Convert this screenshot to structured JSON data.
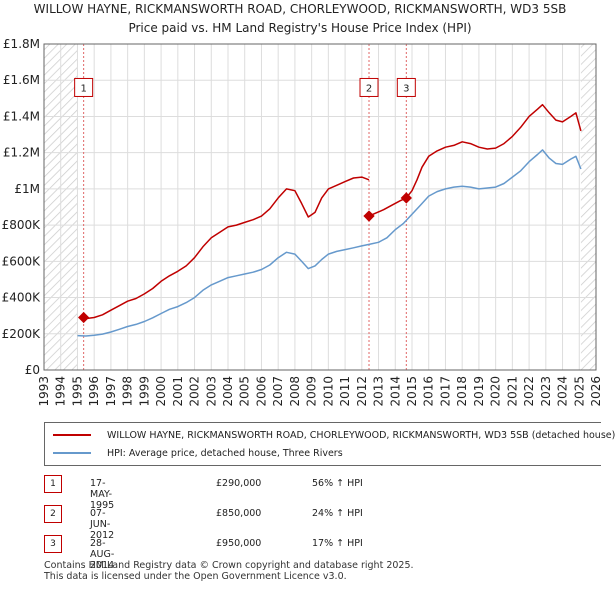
{
  "title_line1": "WILLOW HAYNE, RICKMANSWORTH ROAD, CHORLEYWOOD, RICKMANSWORTH, WD3 5SB",
  "title_line2": "Price paid vs. HM Land Registry's House Price Index (HPI)",
  "colors": {
    "property": "#c00000",
    "hpi": "#6699cc",
    "grid": "#dddddd",
    "hatch": "#cccccc",
    "marker_line": "#e06666"
  },
  "legend": {
    "property_label": "WILLOW HAYNE, RICKMANSWORTH ROAD, CHORLEYWOOD, RICKMANSWORTH, WD3 5SB (detached house)",
    "hpi_label": "HPI: Average price, detached house, Three Rivers"
  },
  "transactions": [
    {
      "num": "1",
      "date": "17-MAY-1995",
      "price": "£290,000",
      "hpi": "56% ↑ HPI"
    },
    {
      "num": "2",
      "date": "07-JUN-2012",
      "price": "£850,000",
      "hpi": "24% ↑ HPI"
    },
    {
      "num": "3",
      "date": "28-AUG-2014",
      "price": "£950,000",
      "hpi": "17% ↑ HPI"
    }
  ],
  "footer_line1": "Contains HM Land Registry data © Crown copyright and database right 2025.",
  "footer_line2": "This data is licensed under the Open Government Licence v3.0.",
  "chart_data": {
    "type": "line",
    "title": "WILLOW HAYNE, RICKMANSWORTH ROAD, CHORLEYWOOD, RICKMANSWORTH, WD3 5SB",
    "subtitle": "Price paid vs. HM Land Registry's House Price Index (HPI)",
    "xlabel": "",
    "ylabel": "",
    "xlim": [
      1993,
      2026
    ],
    "ylim": [
      0,
      1800000
    ],
    "grid": true,
    "x_ticks": [
      "1993",
      "1994",
      "1995",
      "1996",
      "1997",
      "1998",
      "1999",
      "2000",
      "2001",
      "2002",
      "2003",
      "2004",
      "2005",
      "2006",
      "2007",
      "2008",
      "2009",
      "2010",
      "2011",
      "2012",
      "2013",
      "2014",
      "2015",
      "2016",
      "2017",
      "2018",
      "2019",
      "2020",
      "2021",
      "2022",
      "2023",
      "2024",
      "2025",
      "2026"
    ],
    "y_ticks": [
      {
        "value": 0,
        "label": "£0"
      },
      {
        "value": 200000,
        "label": "£200K"
      },
      {
        "value": 400000,
        "label": "£400K"
      },
      {
        "value": 600000,
        "label": "£600K"
      },
      {
        "value": 800000,
        "label": "£800K"
      },
      {
        "value": 1000000,
        "label": "£1M"
      },
      {
        "value": 1200000,
        "label": "£1.2M"
      },
      {
        "value": 1400000,
        "label": "£1.4M"
      },
      {
        "value": 1600000,
        "label": "£1.6M"
      },
      {
        "value": 1800000,
        "label": "£1.8M"
      }
    ],
    "hatched_ranges": [
      [
        1993,
        1995.0
      ],
      [
        2025.1,
        2026
      ]
    ],
    "series": [
      {
        "name": "WILLOW HAYNE, RICKMANSWORTH ROAD, CHORLEYWOOD, RICKMANSWORTH, WD3 5SB (detached house)",
        "segments": [
          [
            [
              1995.37,
              290000
            ],
            [
              1995.6,
              285000
            ],
            [
              1996,
              290000
            ],
            [
              1996.5,
              305000
            ],
            [
              1997,
              330000
            ],
            [
              1997.5,
              355000
            ],
            [
              1998,
              380000
            ],
            [
              1998.5,
              395000
            ],
            [
              1999,
              420000
            ],
            [
              1999.5,
              450000
            ],
            [
              2000,
              490000
            ],
            [
              2000.5,
              520000
            ],
            [
              2001,
              545000
            ],
            [
              2001.5,
              575000
            ],
            [
              2002,
              620000
            ],
            [
              2002.5,
              680000
            ],
            [
              2003,
              730000
            ],
            [
              2003.5,
              760000
            ],
            [
              2004,
              790000
            ],
            [
              2004.5,
              800000
            ],
            [
              2005,
              815000
            ],
            [
              2005.5,
              830000
            ],
            [
              2006,
              850000
            ],
            [
              2006.5,
              890000
            ],
            [
              2007,
              950000
            ],
            [
              2007.5,
              1000000
            ],
            [
              2008,
              990000
            ],
            [
              2008.4,
              920000
            ],
            [
              2008.8,
              845000
            ],
            [
              2009.2,
              870000
            ],
            [
              2009.6,
              950000
            ],
            [
              2010,
              1000000
            ],
            [
              2010.5,
              1020000
            ],
            [
              2011,
              1040000
            ],
            [
              2011.5,
              1060000
            ],
            [
              2012,
              1065000
            ],
            [
              2012.43,
              1050000
            ]
          ],
          [
            [
              2012.43,
              850000
            ],
            [
              2012.8,
              865000
            ],
            [
              2013.3,
              885000
            ],
            [
              2013.8,
              910000
            ],
            [
              2014.3,
              935000
            ],
            [
              2014.66,
              950000
            ]
          ],
          [
            [
              2014.66,
              950000
            ],
            [
              2015,
              990000
            ],
            [
              2015.3,
              1050000
            ],
            [
              2015.6,
              1120000
            ],
            [
              2016,
              1180000
            ],
            [
              2016.5,
              1210000
            ],
            [
              2017,
              1230000
            ],
            [
              2017.5,
              1240000
            ],
            [
              2018,
              1260000
            ],
            [
              2018.5,
              1250000
            ],
            [
              2019,
              1230000
            ],
            [
              2019.5,
              1220000
            ],
            [
              2020,
              1225000
            ],
            [
              2020.5,
              1250000
            ],
            [
              2021,
              1290000
            ],
            [
              2021.5,
              1340000
            ],
            [
              2022,
              1400000
            ],
            [
              2022.5,
              1440000
            ],
            [
              2022.8,
              1465000
            ],
            [
              2023.2,
              1420000
            ],
            [
              2023.6,
              1380000
            ],
            [
              2024,
              1370000
            ],
            [
              2024.5,
              1400000
            ],
            [
              2024.8,
              1420000
            ],
            [
              2025.1,
              1320000
            ]
          ]
        ]
      },
      {
        "name": "HPI: Average price, detached house, Three Rivers",
        "segments": [
          [
            [
              1995,
              190000
            ],
            [
              1995.5,
              188000
            ],
            [
              1996,
              192000
            ],
            [
              1996.5,
              198000
            ],
            [
              1997,
              210000
            ],
            [
              1997.5,
              225000
            ],
            [
              1998,
              240000
            ],
            [
              1998.5,
              252000
            ],
            [
              1999,
              268000
            ],
            [
              1999.5,
              288000
            ],
            [
              2000,
              312000
            ],
            [
              2000.5,
              335000
            ],
            [
              2001,
              350000
            ],
            [
              2001.5,
              372000
            ],
            [
              2002,
              400000
            ],
            [
              2002.5,
              440000
            ],
            [
              2003,
              470000
            ],
            [
              2003.5,
              490000
            ],
            [
              2004,
              510000
            ],
            [
              2004.5,
              520000
            ],
            [
              2005,
              530000
            ],
            [
              2005.5,
              540000
            ],
            [
              2006,
              555000
            ],
            [
              2006.5,
              580000
            ],
            [
              2007,
              620000
            ],
            [
              2007.5,
              650000
            ],
            [
              2008,
              640000
            ],
            [
              2008.4,
              600000
            ],
            [
              2008.8,
              560000
            ],
            [
              2009.2,
              575000
            ],
            [
              2009.6,
              610000
            ],
            [
              2010,
              640000
            ],
            [
              2010.5,
              655000
            ],
            [
              2011,
              665000
            ],
            [
              2011.5,
              675000
            ],
            [
              2012,
              685000
            ],
            [
              2012.5,
              695000
            ],
            [
              2013,
              705000
            ],
            [
              2013.5,
              730000
            ],
            [
              2014,
              775000
            ],
            [
              2014.5,
              810000
            ],
            [
              2015,
              860000
            ],
            [
              2015.5,
              910000
            ],
            [
              2016,
              960000
            ],
            [
              2016.5,
              985000
            ],
            [
              2017,
              1000000
            ],
            [
              2017.5,
              1010000
            ],
            [
              2018,
              1015000
            ],
            [
              2018.5,
              1010000
            ],
            [
              2019,
              1000000
            ],
            [
              2019.5,
              1005000
            ],
            [
              2020,
              1010000
            ],
            [
              2020.5,
              1030000
            ],
            [
              2021,
              1065000
            ],
            [
              2021.5,
              1100000
            ],
            [
              2022,
              1150000
            ],
            [
              2022.5,
              1190000
            ],
            [
              2022.8,
              1215000
            ],
            [
              2023.2,
              1170000
            ],
            [
              2023.6,
              1140000
            ],
            [
              2024,
              1135000
            ],
            [
              2024.5,
              1165000
            ],
            [
              2024.8,
              1180000
            ],
            [
              2025.1,
              1110000
            ]
          ]
        ]
      }
    ],
    "sales": [
      {
        "label": "1",
        "x": 1995.37,
        "y": 290000,
        "box_y": 1560000
      },
      {
        "label": "2",
        "x": 2012.43,
        "y": 850000,
        "box_y": 1560000
      },
      {
        "label": "3",
        "x": 2014.66,
        "y": 950000,
        "box_y": 1560000
      }
    ]
  }
}
